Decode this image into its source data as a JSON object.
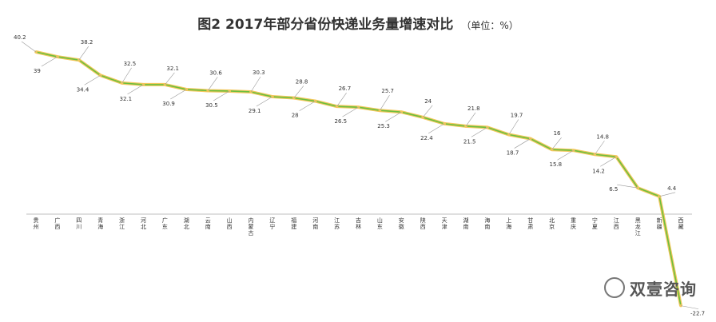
{
  "chart_data": {
    "type": "line",
    "title": "图2  2017年部分省份快递业务量增速对比",
    "unit_note": "（单位：%）",
    "categories": [
      "贵州",
      "广西",
      "四川",
      "青海",
      "浙江",
      "河北",
      "广东",
      "湖北",
      "云南",
      "山西",
      "内蒙古",
      "辽宁",
      "福建",
      "河南",
      "江苏",
      "吉林",
      "山东",
      "安徽",
      "陕西",
      "天津",
      "湖南",
      "海南",
      "上海",
      "甘肃",
      "北京",
      "重庆",
      "宁夏",
      "江西",
      "黑龙江",
      "新疆",
      "西藏"
    ],
    "series": [
      {
        "values": [
          40.2,
          39,
          38.2,
          34.4,
          32.5,
          32.1,
          32.1,
          30.9,
          30.6,
          30.5,
          30.3,
          29.1,
          28.8,
          28,
          26.7,
          26.5,
          25.7,
          25.3,
          24,
          22.4,
          21.8,
          21.5,
          19.7,
          18.7,
          16,
          15.8,
          14.8,
          14.2,
          6.5,
          4.4,
          -22.7
        ]
      }
    ],
    "ylim": [
      -24,
      42
    ],
    "grid": false,
    "legend": "none",
    "colors": {
      "line_outer": "#f2c75c",
      "line_inner": "#6bbf3f",
      "axis": "#bfbfbf",
      "leader": "#999999",
      "text": "#333333"
    }
  },
  "watermark": {
    "text": "双壹咨询"
  }
}
